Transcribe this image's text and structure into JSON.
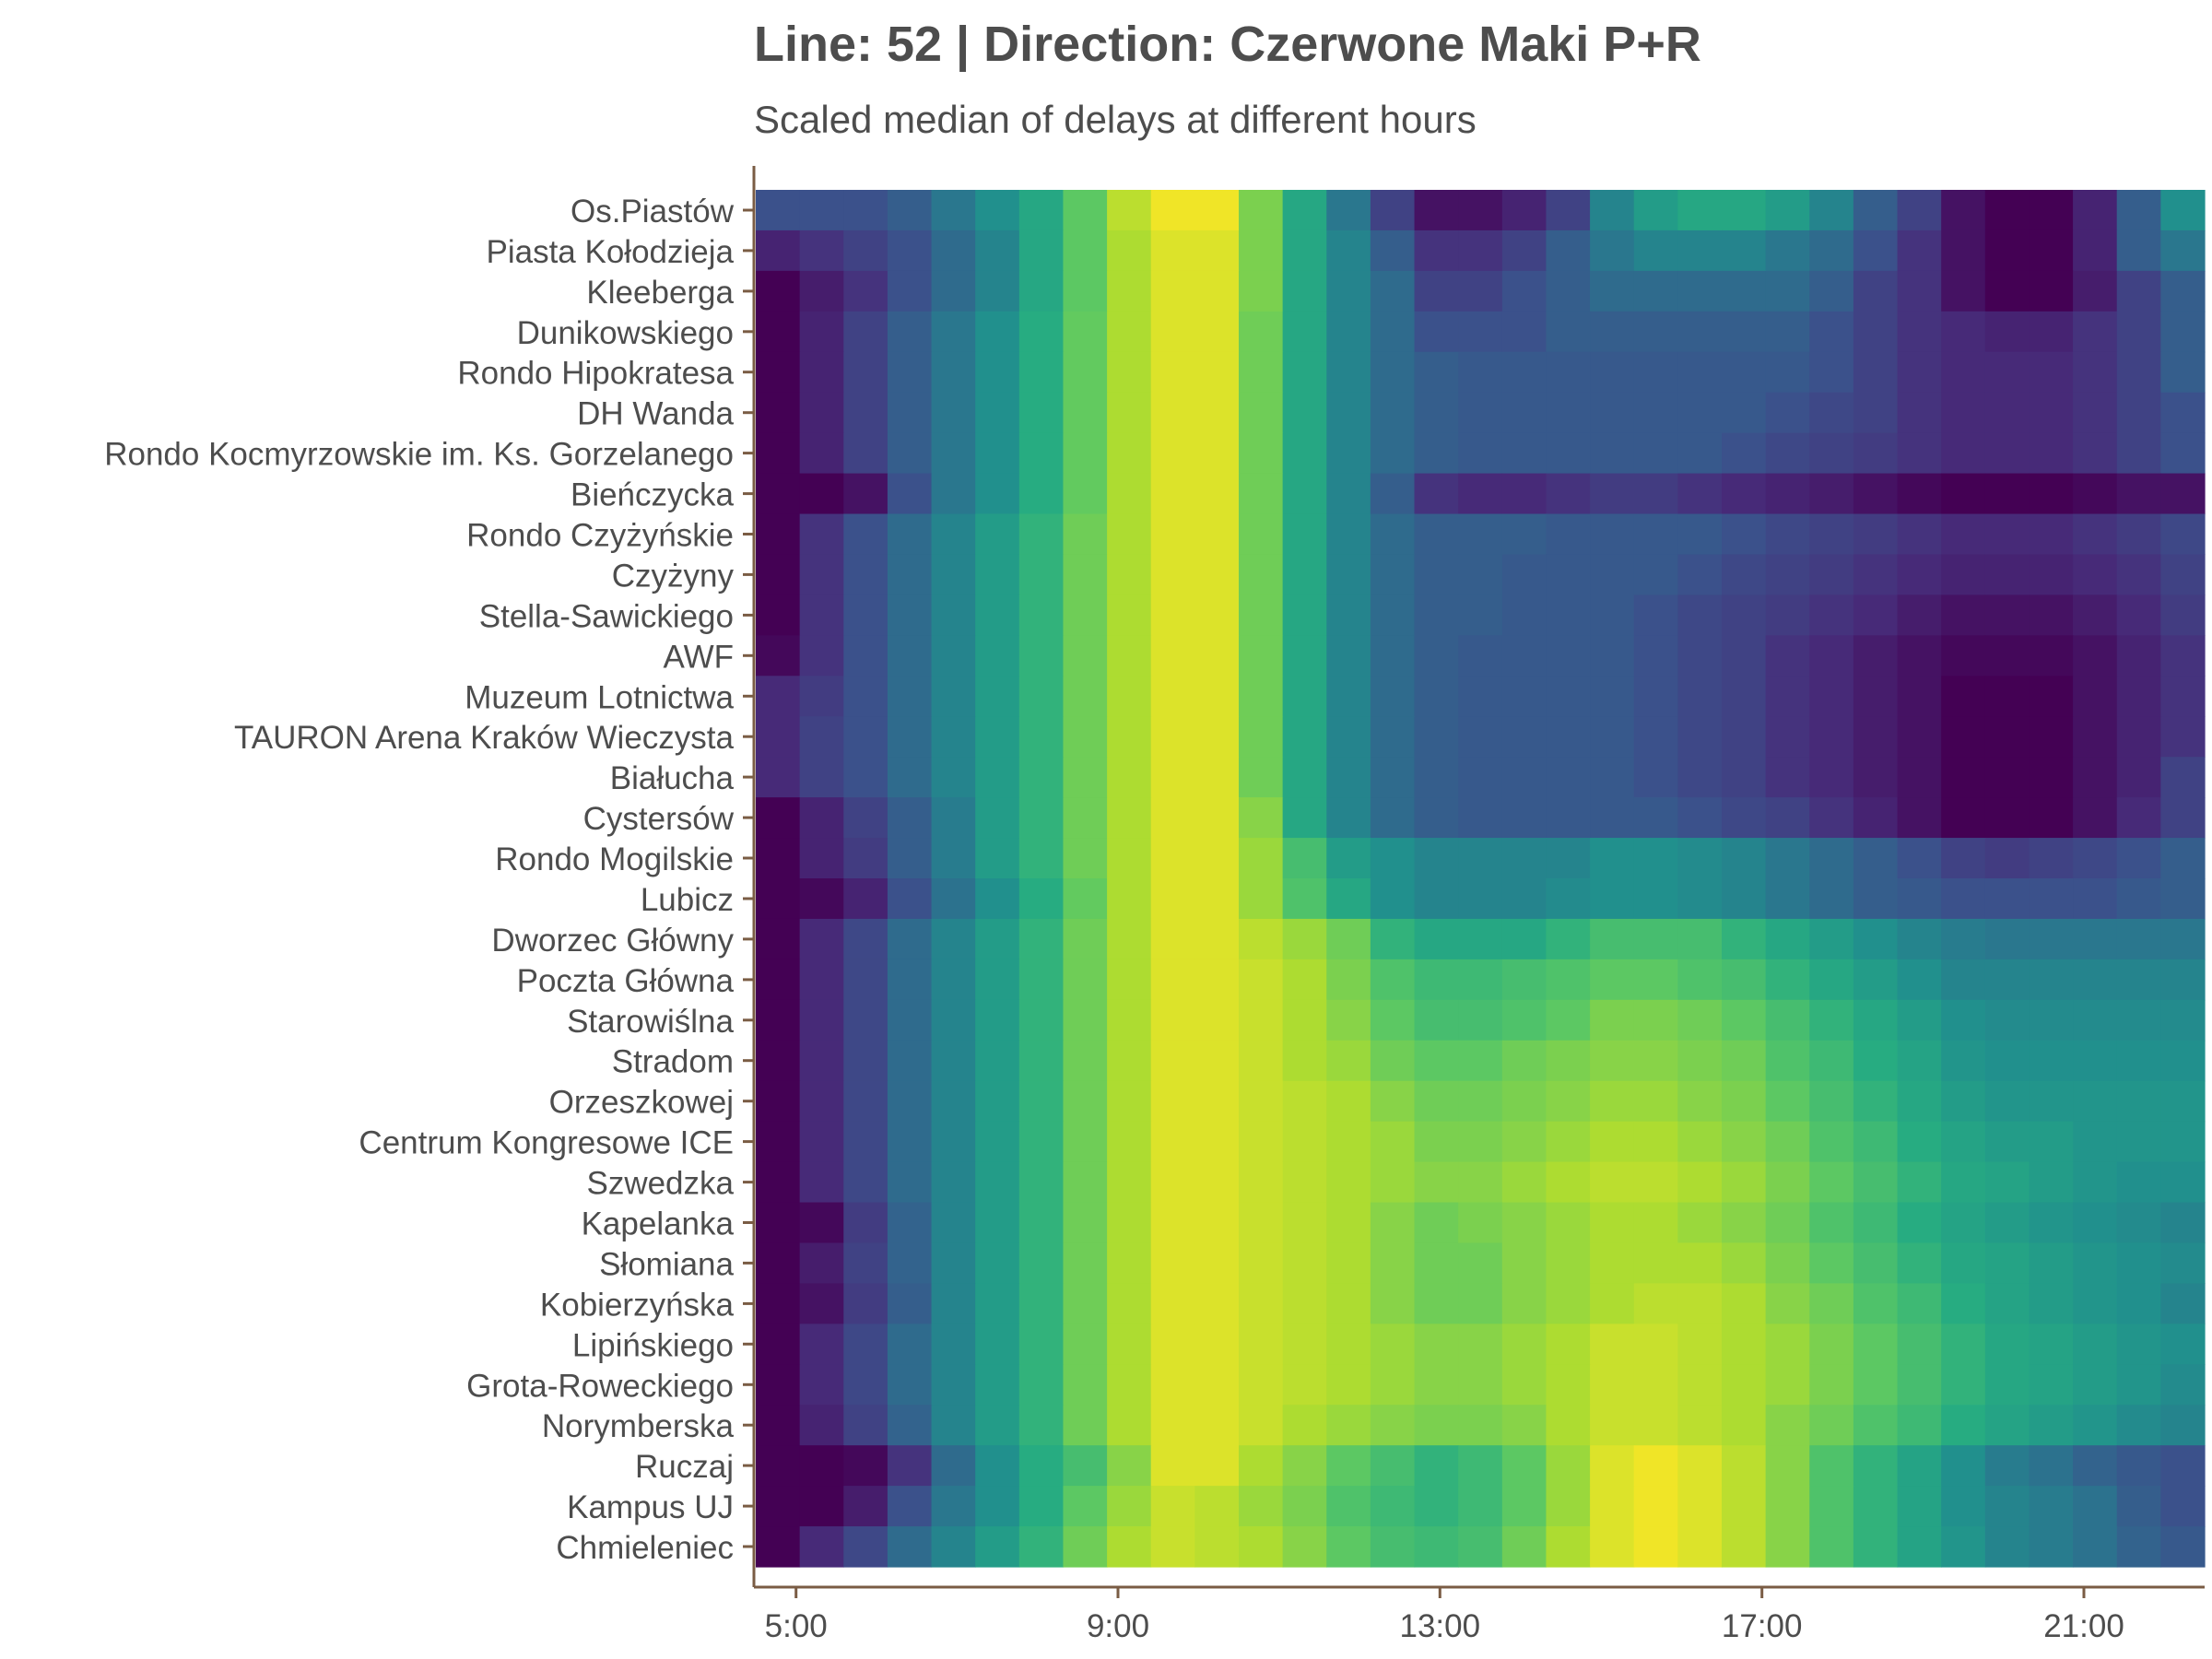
{
  "chart_data": {
    "type": "heatmap",
    "title": "Line: 52 | Direction: Czerwone Maki P+R",
    "subtitle": "Scaled median of delays at different hours",
    "xlabel": "",
    "ylabel": "",
    "x_hours_range": [
      "4:30",
      "22:30"
    ],
    "x_ticks": [
      "5:00",
      "9:00",
      "13:00",
      "17:00",
      "21:00"
    ],
    "grid": false,
    "legend": "none",
    "colormap": "viridis",
    "value_range": [
      0,
      1
    ],
    "stops": [
      "Os.Piastów",
      "Piasta Kołodzieja",
      "Kleeberga",
      "Dunikowskiego",
      "Rondo Hipokratesa",
      "DH Wanda",
      "Rondo Kocmyrzowskie im. Ks. Gorzelanego",
      "Bieńczycka",
      "Rondo Czyżyńskie",
      "Czyżyny",
      "Stella-Sawickiego",
      "AWF",
      "Muzeum Lotnictwa",
      "TAURON Arena Kraków Wieczysta",
      "Białucha",
      "Cystersów",
      "Rondo Mogilskie",
      "Lubicz",
      "Dworzec Główny",
      "Poczta Główna",
      "Starowiślna",
      "Stradom",
      "Orzeszkowej",
      "Centrum Kongresowe ICE",
      "Szwedzka",
      "Kapelanka",
      "Słomiana",
      "Kobierzyńska",
      "Lipińskiego",
      "Grota-Roweckiego",
      "Norymberska",
      "Ruczaj",
      "Kampus UJ",
      "Chmieleniec"
    ],
    "values": [
      [
        0.25,
        0.25,
        0.25,
        0.3,
        0.4,
        0.5,
        0.6,
        0.75,
        0.9,
        0.98,
        0.98,
        0.8,
        0.6,
        0.4,
        0.2,
        0.05,
        0.05,
        0.1,
        0.2,
        0.45,
        0.55,
        0.6,
        0.6,
        0.55,
        0.45,
        0.3,
        0.2,
        0.05,
        0.0,
        0.0,
        0.1,
        0.3,
        0.5
      ],
      [
        0.1,
        0.15,
        0.2,
        0.25,
        0.35,
        0.45,
        0.6,
        0.75,
        0.88,
        0.95,
        0.95,
        0.8,
        0.6,
        0.45,
        0.3,
        0.15,
        0.15,
        0.2,
        0.3,
        0.4,
        0.45,
        0.45,
        0.45,
        0.4,
        0.35,
        0.25,
        0.15,
        0.05,
        0.0,
        0.0,
        0.1,
        0.3,
        0.4
      ],
      [
        0.0,
        0.08,
        0.15,
        0.25,
        0.35,
        0.45,
        0.6,
        0.75,
        0.88,
        0.95,
        0.95,
        0.8,
        0.6,
        0.45,
        0.35,
        0.2,
        0.2,
        0.25,
        0.3,
        0.35,
        0.35,
        0.35,
        0.35,
        0.35,
        0.3,
        0.2,
        0.15,
        0.05,
        0.0,
        0.0,
        0.08,
        0.2,
        0.3
      ],
      [
        0.0,
        0.1,
        0.2,
        0.3,
        0.4,
        0.5,
        0.62,
        0.76,
        0.88,
        0.95,
        0.95,
        0.78,
        0.6,
        0.45,
        0.35,
        0.25,
        0.25,
        0.25,
        0.3,
        0.3,
        0.3,
        0.3,
        0.3,
        0.3,
        0.25,
        0.2,
        0.15,
        0.12,
        0.1,
        0.1,
        0.15,
        0.2,
        0.3
      ],
      [
        0.0,
        0.1,
        0.2,
        0.3,
        0.4,
        0.5,
        0.62,
        0.76,
        0.88,
        0.95,
        0.95,
        0.78,
        0.6,
        0.45,
        0.35,
        0.3,
        0.28,
        0.28,
        0.28,
        0.28,
        0.28,
        0.28,
        0.28,
        0.28,
        0.25,
        0.2,
        0.15,
        0.12,
        0.12,
        0.12,
        0.15,
        0.2,
        0.3
      ],
      [
        0.0,
        0.1,
        0.2,
        0.3,
        0.4,
        0.5,
        0.62,
        0.76,
        0.88,
        0.95,
        0.95,
        0.78,
        0.6,
        0.45,
        0.35,
        0.3,
        0.28,
        0.28,
        0.28,
        0.28,
        0.28,
        0.28,
        0.28,
        0.25,
        0.22,
        0.2,
        0.15,
        0.12,
        0.12,
        0.12,
        0.15,
        0.2,
        0.25
      ],
      [
        0.0,
        0.1,
        0.2,
        0.3,
        0.4,
        0.5,
        0.62,
        0.76,
        0.88,
        0.95,
        0.95,
        0.78,
        0.6,
        0.45,
        0.35,
        0.3,
        0.28,
        0.28,
        0.28,
        0.28,
        0.28,
        0.28,
        0.25,
        0.22,
        0.2,
        0.18,
        0.15,
        0.12,
        0.12,
        0.12,
        0.15,
        0.2,
        0.25
      ],
      [
        0.0,
        0.0,
        0.05,
        0.25,
        0.4,
        0.5,
        0.62,
        0.76,
        0.88,
        0.95,
        0.95,
        0.78,
        0.6,
        0.45,
        0.3,
        0.15,
        0.12,
        0.12,
        0.15,
        0.18,
        0.18,
        0.15,
        0.12,
        0.1,
        0.08,
        0.05,
        0.02,
        0.0,
        0.0,
        0.0,
        0.02,
        0.05,
        0.05
      ],
      [
        0.0,
        0.15,
        0.25,
        0.35,
        0.45,
        0.55,
        0.65,
        0.78,
        0.88,
        0.95,
        0.95,
        0.78,
        0.6,
        0.45,
        0.35,
        0.3,
        0.3,
        0.3,
        0.28,
        0.28,
        0.28,
        0.28,
        0.25,
        0.22,
        0.2,
        0.18,
        0.15,
        0.12,
        0.12,
        0.12,
        0.15,
        0.18,
        0.22
      ],
      [
        0.0,
        0.15,
        0.25,
        0.35,
        0.45,
        0.55,
        0.65,
        0.78,
        0.88,
        0.95,
        0.95,
        0.78,
        0.6,
        0.45,
        0.35,
        0.3,
        0.3,
        0.28,
        0.28,
        0.28,
        0.28,
        0.25,
        0.22,
        0.2,
        0.18,
        0.15,
        0.12,
        0.1,
        0.1,
        0.1,
        0.12,
        0.15,
        0.2
      ],
      [
        0.0,
        0.15,
        0.25,
        0.35,
        0.45,
        0.55,
        0.65,
        0.78,
        0.88,
        0.95,
        0.95,
        0.78,
        0.6,
        0.45,
        0.35,
        0.3,
        0.3,
        0.28,
        0.28,
        0.28,
        0.25,
        0.22,
        0.2,
        0.18,
        0.15,
        0.12,
        0.08,
        0.05,
        0.05,
        0.05,
        0.08,
        0.12,
        0.18
      ],
      [
        0.02,
        0.15,
        0.25,
        0.35,
        0.45,
        0.55,
        0.65,
        0.78,
        0.88,
        0.95,
        0.95,
        0.78,
        0.6,
        0.45,
        0.35,
        0.3,
        0.28,
        0.28,
        0.28,
        0.28,
        0.25,
        0.22,
        0.2,
        0.15,
        0.12,
        0.08,
        0.05,
        0.02,
        0.02,
        0.02,
        0.05,
        0.1,
        0.15
      ],
      [
        0.12,
        0.18,
        0.25,
        0.35,
        0.45,
        0.55,
        0.65,
        0.78,
        0.88,
        0.95,
        0.95,
        0.78,
        0.6,
        0.45,
        0.35,
        0.3,
        0.28,
        0.28,
        0.28,
        0.28,
        0.25,
        0.22,
        0.2,
        0.15,
        0.12,
        0.08,
        0.05,
        0.0,
        0.0,
        0.0,
        0.05,
        0.1,
        0.15
      ],
      [
        0.12,
        0.2,
        0.25,
        0.35,
        0.45,
        0.55,
        0.65,
        0.78,
        0.88,
        0.95,
        0.95,
        0.78,
        0.6,
        0.45,
        0.35,
        0.3,
        0.28,
        0.28,
        0.28,
        0.28,
        0.25,
        0.22,
        0.2,
        0.15,
        0.12,
        0.08,
        0.05,
        0.0,
        0.0,
        0.0,
        0.05,
        0.1,
        0.15
      ],
      [
        0.12,
        0.2,
        0.25,
        0.35,
        0.45,
        0.55,
        0.65,
        0.78,
        0.88,
        0.95,
        0.95,
        0.78,
        0.6,
        0.45,
        0.35,
        0.3,
        0.28,
        0.28,
        0.28,
        0.28,
        0.25,
        0.22,
        0.2,
        0.15,
        0.12,
        0.08,
        0.05,
        0.0,
        0.0,
        0.0,
        0.05,
        0.1,
        0.2
      ],
      [
        0.0,
        0.1,
        0.2,
        0.3,
        0.42,
        0.55,
        0.65,
        0.78,
        0.88,
        0.95,
        0.95,
        0.82,
        0.6,
        0.45,
        0.35,
        0.3,
        0.28,
        0.28,
        0.28,
        0.28,
        0.28,
        0.25,
        0.22,
        0.2,
        0.15,
        0.1,
        0.05,
        0.0,
        0.0,
        0.0,
        0.05,
        0.12,
        0.2
      ],
      [
        0.0,
        0.1,
        0.18,
        0.3,
        0.42,
        0.55,
        0.65,
        0.78,
        0.88,
        0.95,
        0.95,
        0.85,
        0.7,
        0.55,
        0.5,
        0.45,
        0.45,
        0.45,
        0.45,
        0.5,
        0.5,
        0.48,
        0.45,
        0.4,
        0.35,
        0.3,
        0.25,
        0.2,
        0.18,
        0.2,
        0.22,
        0.25,
        0.3
      ],
      [
        0.0,
        0.02,
        0.1,
        0.25,
        0.38,
        0.5,
        0.62,
        0.76,
        0.88,
        0.95,
        0.95,
        0.85,
        0.72,
        0.6,
        0.5,
        0.45,
        0.45,
        0.45,
        0.48,
        0.5,
        0.5,
        0.48,
        0.45,
        0.4,
        0.35,
        0.3,
        0.28,
        0.25,
        0.25,
        0.25,
        0.25,
        0.28,
        0.3
      ],
      [
        0.0,
        0.12,
        0.22,
        0.35,
        0.45,
        0.55,
        0.65,
        0.78,
        0.88,
        0.95,
        0.95,
        0.9,
        0.85,
        0.78,
        0.65,
        0.6,
        0.6,
        0.6,
        0.65,
        0.7,
        0.7,
        0.7,
        0.65,
        0.6,
        0.55,
        0.5,
        0.45,
        0.42,
        0.4,
        0.4,
        0.4,
        0.4,
        0.4
      ],
      [
        0.0,
        0.12,
        0.22,
        0.35,
        0.45,
        0.55,
        0.65,
        0.78,
        0.88,
        0.95,
        0.95,
        0.92,
        0.88,
        0.8,
        0.72,
        0.68,
        0.68,
        0.7,
        0.72,
        0.75,
        0.75,
        0.72,
        0.7,
        0.65,
        0.6,
        0.55,
        0.5,
        0.45,
        0.45,
        0.45,
        0.45,
        0.45,
        0.45
      ],
      [
        0.0,
        0.12,
        0.22,
        0.35,
        0.45,
        0.55,
        0.65,
        0.78,
        0.88,
        0.95,
        0.95,
        0.92,
        0.88,
        0.82,
        0.75,
        0.7,
        0.7,
        0.72,
        0.75,
        0.8,
        0.8,
        0.78,
        0.75,
        0.7,
        0.65,
        0.6,
        0.55,
        0.5,
        0.48,
        0.48,
        0.48,
        0.48,
        0.48
      ],
      [
        0.0,
        0.12,
        0.22,
        0.35,
        0.45,
        0.55,
        0.65,
        0.78,
        0.88,
        0.95,
        0.95,
        0.92,
        0.88,
        0.85,
        0.78,
        0.75,
        0.75,
        0.78,
        0.8,
        0.82,
        0.82,
        0.8,
        0.78,
        0.72,
        0.68,
        0.62,
        0.58,
        0.52,
        0.5,
        0.5,
        0.5,
        0.5,
        0.5
      ],
      [
        0.0,
        0.12,
        0.22,
        0.35,
        0.45,
        0.55,
        0.65,
        0.78,
        0.88,
        0.95,
        0.95,
        0.92,
        0.9,
        0.88,
        0.82,
        0.78,
        0.78,
        0.8,
        0.82,
        0.85,
        0.85,
        0.82,
        0.8,
        0.75,
        0.7,
        0.65,
        0.6,
        0.55,
        0.52,
        0.52,
        0.52,
        0.52,
        0.52
      ],
      [
        0.0,
        0.12,
        0.22,
        0.35,
        0.45,
        0.55,
        0.65,
        0.78,
        0.88,
        0.95,
        0.95,
        0.92,
        0.9,
        0.88,
        0.85,
        0.8,
        0.8,
        0.82,
        0.85,
        0.88,
        0.88,
        0.85,
        0.82,
        0.78,
        0.72,
        0.68,
        0.62,
        0.58,
        0.55,
        0.55,
        0.52,
        0.52,
        0.52
      ],
      [
        0.0,
        0.12,
        0.22,
        0.35,
        0.45,
        0.55,
        0.65,
        0.78,
        0.88,
        0.95,
        0.95,
        0.92,
        0.9,
        0.88,
        0.85,
        0.82,
        0.82,
        0.85,
        0.88,
        0.9,
        0.9,
        0.88,
        0.85,
        0.8,
        0.75,
        0.7,
        0.65,
        0.6,
        0.58,
        0.55,
        0.52,
        0.5,
        0.5
      ],
      [
        0.0,
        0.02,
        0.18,
        0.32,
        0.45,
        0.55,
        0.65,
        0.78,
        0.88,
        0.95,
        0.95,
        0.92,
        0.9,
        0.88,
        0.82,
        0.78,
        0.8,
        0.82,
        0.85,
        0.88,
        0.88,
        0.85,
        0.82,
        0.78,
        0.72,
        0.68,
        0.62,
        0.58,
        0.55,
        0.52,
        0.5,
        0.48,
        0.45
      ],
      [
        0.0,
        0.08,
        0.2,
        0.32,
        0.45,
        0.55,
        0.65,
        0.78,
        0.88,
        0.95,
        0.95,
        0.92,
        0.9,
        0.88,
        0.82,
        0.78,
        0.78,
        0.82,
        0.85,
        0.88,
        0.88,
        0.88,
        0.85,
        0.8,
        0.75,
        0.7,
        0.65,
        0.6,
        0.58,
        0.55,
        0.52,
        0.5,
        0.48
      ],
      [
        0.0,
        0.05,
        0.18,
        0.3,
        0.45,
        0.55,
        0.65,
        0.78,
        0.88,
        0.95,
        0.95,
        0.92,
        0.9,
        0.88,
        0.82,
        0.78,
        0.78,
        0.82,
        0.85,
        0.88,
        0.9,
        0.9,
        0.88,
        0.82,
        0.78,
        0.72,
        0.68,
        0.62,
        0.58,
        0.55,
        0.52,
        0.5,
        0.45
      ],
      [
        0.0,
        0.12,
        0.22,
        0.35,
        0.45,
        0.55,
        0.65,
        0.78,
        0.88,
        0.95,
        0.95,
        0.92,
        0.9,
        0.88,
        0.85,
        0.82,
        0.82,
        0.85,
        0.88,
        0.92,
        0.92,
        0.9,
        0.88,
        0.85,
        0.8,
        0.75,
        0.7,
        0.65,
        0.6,
        0.58,
        0.55,
        0.52,
        0.5
      ],
      [
        0.0,
        0.12,
        0.22,
        0.35,
        0.45,
        0.55,
        0.65,
        0.78,
        0.88,
        0.95,
        0.95,
        0.92,
        0.9,
        0.88,
        0.85,
        0.82,
        0.82,
        0.85,
        0.88,
        0.92,
        0.92,
        0.9,
        0.88,
        0.85,
        0.8,
        0.75,
        0.7,
        0.65,
        0.6,
        0.58,
        0.55,
        0.52,
        0.48
      ],
      [
        0.0,
        0.1,
        0.2,
        0.32,
        0.45,
        0.55,
        0.65,
        0.78,
        0.88,
        0.95,
        0.95,
        0.92,
        0.88,
        0.85,
        0.82,
        0.8,
        0.8,
        0.82,
        0.88,
        0.92,
        0.92,
        0.9,
        0.88,
        0.82,
        0.78,
        0.72,
        0.68,
        0.62,
        0.58,
        0.55,
        0.52,
        0.48,
        0.45
      ],
      [
        0.0,
        0.0,
        0.02,
        0.15,
        0.35,
        0.5,
        0.62,
        0.7,
        0.82,
        0.95,
        0.95,
        0.88,
        0.82,
        0.75,
        0.7,
        0.65,
        0.68,
        0.75,
        0.85,
        0.95,
        0.98,
        0.95,
        0.9,
        0.82,
        0.72,
        0.65,
        0.58,
        0.5,
        0.42,
        0.38,
        0.32,
        0.28,
        0.25
      ],
      [
        0.0,
        0.0,
        0.08,
        0.25,
        0.4,
        0.5,
        0.62,
        0.75,
        0.85,
        0.92,
        0.9,
        0.85,
        0.8,
        0.72,
        0.68,
        0.65,
        0.68,
        0.75,
        0.85,
        0.95,
        0.98,
        0.95,
        0.9,
        0.82,
        0.72,
        0.65,
        0.58,
        0.5,
        0.45,
        0.42,
        0.38,
        0.3,
        0.25
      ],
      [
        0.0,
        0.12,
        0.22,
        0.35,
        0.45,
        0.55,
        0.65,
        0.78,
        0.88,
        0.92,
        0.9,
        0.88,
        0.82,
        0.75,
        0.7,
        0.68,
        0.7,
        0.78,
        0.88,
        0.95,
        0.98,
        0.95,
        0.9,
        0.82,
        0.72,
        0.65,
        0.58,
        0.52,
        0.45,
        0.42,
        0.38,
        0.32,
        0.28
      ]
    ]
  }
}
